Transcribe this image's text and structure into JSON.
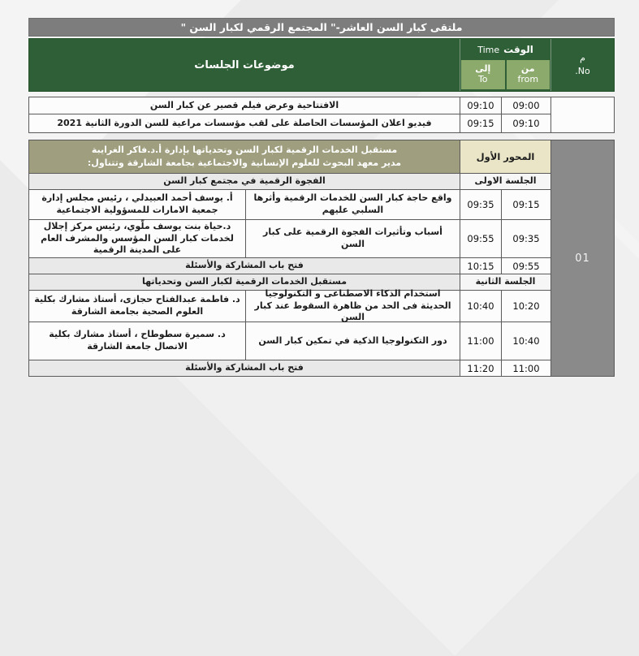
{
  "title": "ملتقى كبار السن العاشر-\" المجتمع الرقمي لكبار السن \"",
  "header": {
    "topics_label": "موضوعات الجلسات",
    "time_ar": "الوقت",
    "time_en": "Time",
    "to_ar": "إلى",
    "to_en": "To",
    "from_ar": "من",
    "from_en": "from",
    "no_ar": "م",
    "no_en": "No."
  },
  "intro_rows": [
    {
      "topic": "الافتتاحية وعرض فيلم قصير عن كبار السن",
      "from": "09:00",
      "to": "09:10"
    },
    {
      "topic": "فيديو اعلان المؤسسات الحاصلة على لقب مؤسسات مراعية للسن الدورة الثانية 2021",
      "from": "09:10",
      "to": "09:15"
    }
  ],
  "section": {
    "number": "01",
    "axis_label": "المحور الأول",
    "axis_desc1": "مستقبل الخدمات الرقمية لكبار السن وتحدياتها بإدارة أ.د.فاكر الغرايبة",
    "axis_desc2": "مدير معهد البحوث للعلوم الإنسانية والاجتماعية بجامعة الشارقة وتتناول:",
    "session1_label": "الجلسة الاولى",
    "session1_title": "الفجوة الرقمية في مجتمع كبار السن",
    "talk1": {
      "topic": "واقع حاجة كبار السن للخدمات الرقمية وأثرها السلبي عليهم",
      "speaker": "أ. يوسف أحمد العبيدلي ، رئيس مجلس إدارة جمعية الامارات للمسؤولية الاجتماعية",
      "from": "09:15",
      "to": "09:35"
    },
    "talk2": {
      "topic": "أسباب وتأثيرات الفجوة الرقمية على كبار السن",
      "speaker": "د.حياة بنت يوسف ملّوي، رئيس مركز إجلال لخدمات كبار السن المؤسس والمشرف العام على المدينة الرقمية",
      "from": "09:35",
      "to": "09:55"
    },
    "open1": {
      "text": "فتح باب المشاركة والأسئلة",
      "from": "09:55",
      "to": "10:15"
    },
    "session2_label": "الجلسة الثانية",
    "session2_title": "مستقبل الخدمات الرقمية لكبار السن وتحدياتها",
    "talk3": {
      "topic": "استخدام الذكاء الاصطناعى و التكنولوجيا الحديثة فى الحد من ظاهرة السقوط عند كبار السن",
      "speaker": "د. فاطمة عبدالفتاح حجازى، أستاذ مشارك بكلية العلوم الصحية بجامعة الشارقة",
      "from": "10:20",
      "to": "10:40"
    },
    "talk4": {
      "topic": "دور التكنولوجيا الذكية في تمكين كبار السن",
      "speaker": "د. سميرة سطوطاح ، أستاذ مشارك بكلية الاتصال جامعة الشارقة",
      "from": "10:40",
      "to": "11:00"
    },
    "open2": {
      "text": "فتح باب المشاركة والأسئلة",
      "from": "11:00",
      "to": "11:20"
    }
  },
  "colors": {
    "header_green": "#2e5f36",
    "subheader_green": "#8caa6b",
    "title_bar_gray": "#7d7d7d",
    "axis_olive": "#9f9f80",
    "axis_cream": "#e9e5c6",
    "number_gray": "#8a8a8a",
    "page_bg": "#ebebeb"
  }
}
